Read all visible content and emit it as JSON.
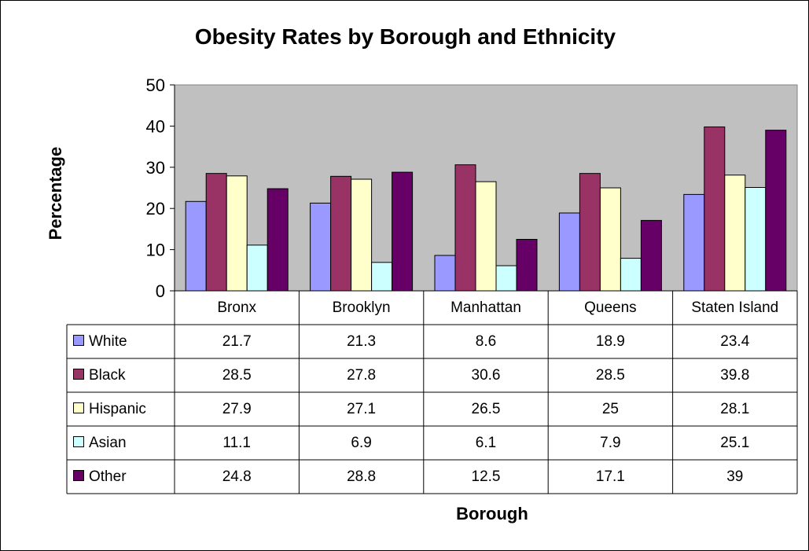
{
  "chart_data": {
    "type": "bar",
    "title": "Obesity Rates by Borough and Ethnicity",
    "xlabel": "Borough",
    "ylabel": "Percentage",
    "ylim": [
      0,
      50
    ],
    "yticks": [
      "0",
      "10",
      "20",
      "30",
      "40",
      "50"
    ],
    "grid": false,
    "plot_background": "#c0c0c0",
    "legend": "data-table",
    "categories": [
      "Bronx",
      "Brooklyn",
      "Manhattan",
      "Queens",
      "Staten Island"
    ],
    "series": [
      {
        "name": "White",
        "color": "#9999ff",
        "values": [
          21.7,
          21.3,
          8.6,
          18.9,
          23.4
        ],
        "labels": [
          "21.7",
          "21.3",
          "8.6",
          "18.9",
          "23.4"
        ]
      },
      {
        "name": "Black",
        "color": "#993366",
        "values": [
          28.5,
          27.8,
          30.6,
          28.5,
          39.8
        ],
        "labels": [
          "28.5",
          "27.8",
          "30.6",
          "28.5",
          "39.8"
        ]
      },
      {
        "name": "Hispanic",
        "color": "#ffffcc",
        "values": [
          27.9,
          27.1,
          26.5,
          25,
          28.1
        ],
        "labels": [
          "27.9",
          "27.1",
          "26.5",
          "25",
          "28.1"
        ]
      },
      {
        "name": "Asian",
        "color": "#ccffff",
        "values": [
          11.1,
          6.9,
          6.1,
          7.9,
          25.1
        ],
        "labels": [
          "11.1",
          "6.9",
          "6.1",
          "7.9",
          "25.1"
        ]
      },
      {
        "name": "Other",
        "color": "#660066",
        "values": [
          24.8,
          28.8,
          12.5,
          17.1,
          39
        ],
        "labels": [
          "24.8",
          "28.8",
          "12.5",
          "17.1",
          "39"
        ]
      }
    ]
  }
}
